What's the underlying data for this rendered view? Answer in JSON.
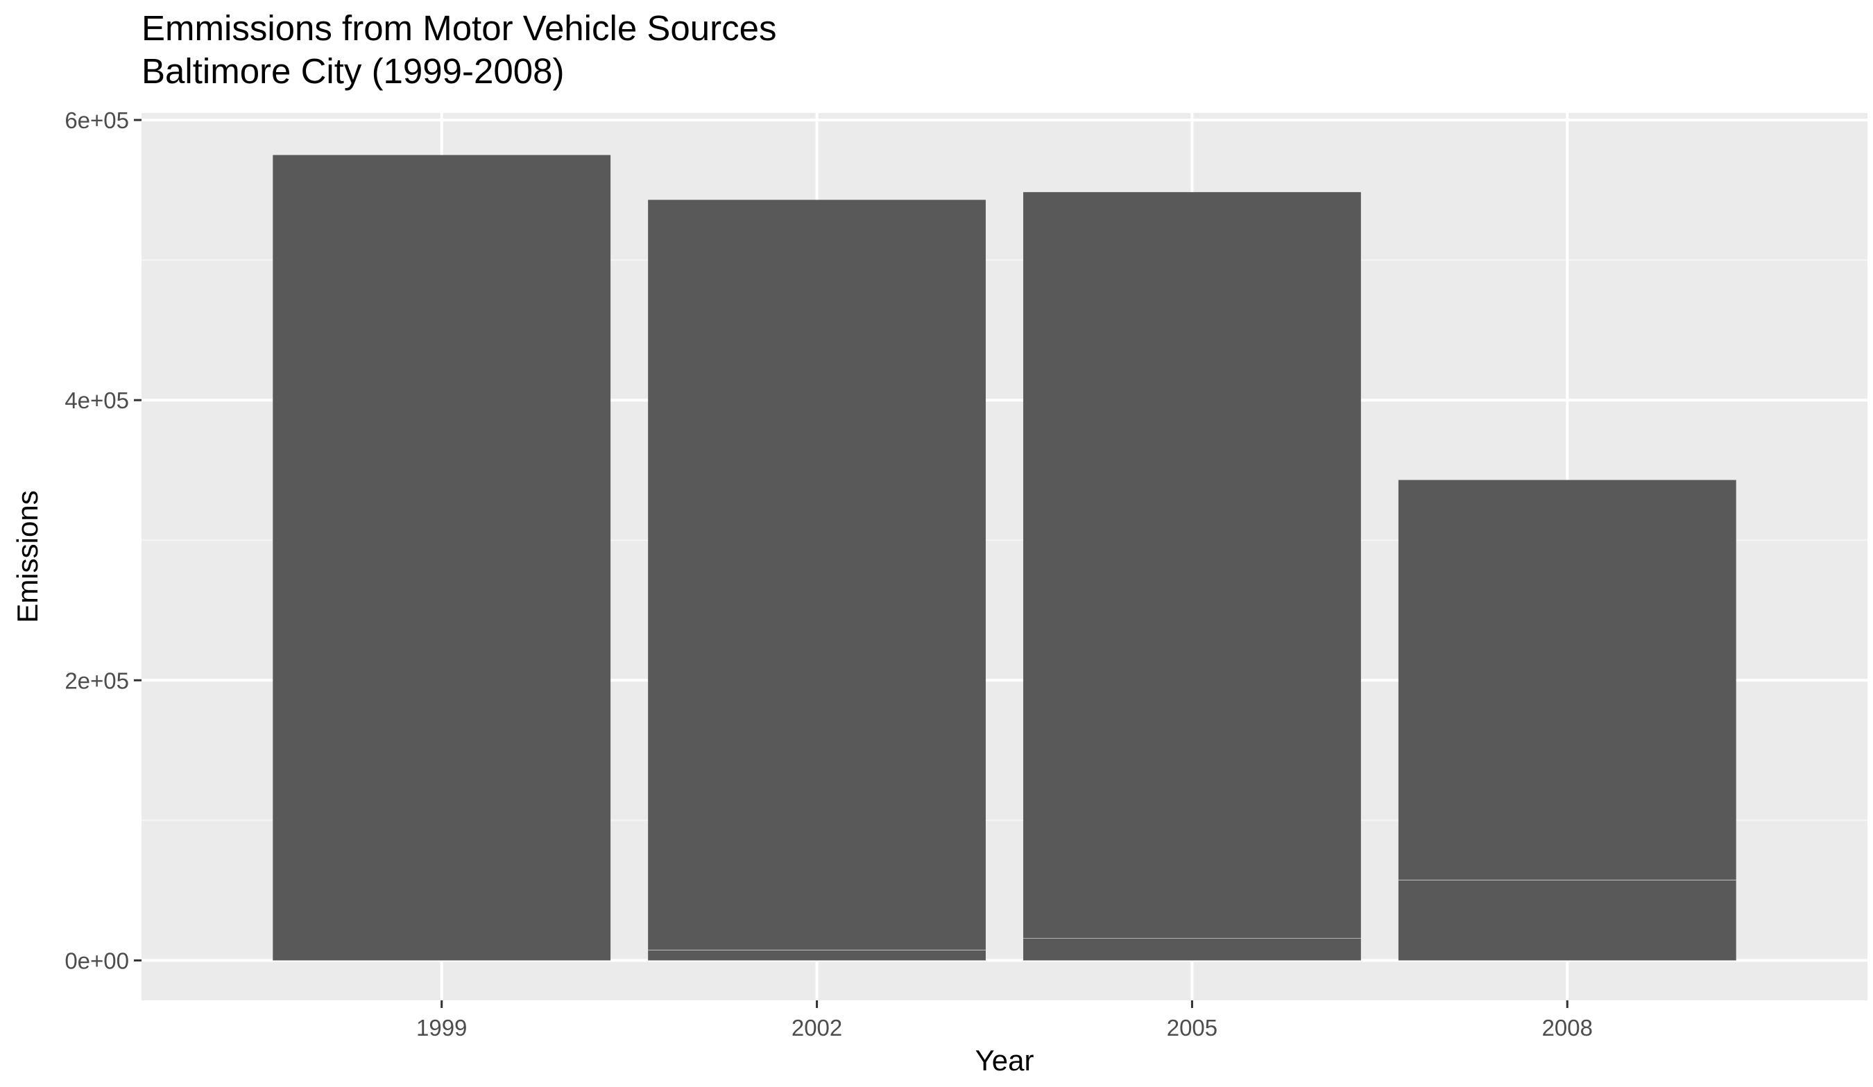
{
  "chart_data": {
    "type": "bar",
    "title": "Emmissions from Motor Vehicle Sources",
    "subtitle": "Baltimore City (1999-2008)",
    "xlabel": "Year",
    "ylabel": "Emissions",
    "categories": [
      "1999",
      "2002",
      "2005",
      "2008"
    ],
    "y_tick_labels": [
      "0e+00",
      "2e+05",
      "4e+05",
      "6e+05"
    ],
    "y_ticks": [
      0,
      200000,
      400000,
      600000
    ],
    "ylim": [
      -28500,
      605000
    ],
    "grid": true,
    "stacked": true,
    "stacks": [
      [
        575000
      ],
      [
        7500,
        535500
      ],
      [
        16000,
        532500
      ],
      [
        57500,
        285500
      ]
    ],
    "colors": {
      "panel": "#ebebeb",
      "grid_major": "#ffffff",
      "grid_minor": "#f5f5f5",
      "bar": "#595959",
      "segment_divider": "#ffffff",
      "tick_text": "#4d4d4d",
      "tick_mark": "#333333"
    }
  }
}
